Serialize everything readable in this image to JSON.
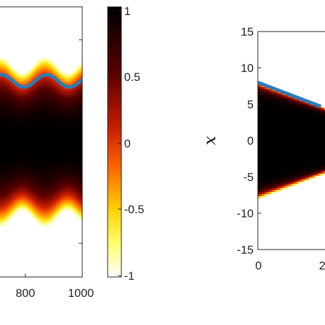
{
  "chart_data": [
    {
      "type": "heatmap",
      "title": "",
      "xlabel": "",
      "ylabel": "",
      "x_ticks": [
        "800",
        "1000"
      ],
      "xlim": [
        660,
        1000
      ],
      "pattern": "oscillating Gaussian band, centre near zero, period ~100",
      "line_series_color": "#2b7bb9",
      "colormap": "hot (reversed): white → yellow → red → black"
    },
    {
      "type": "heatmap",
      "title": "",
      "xlabel": "",
      "ylabel": "x",
      "y_ticks": [
        "15",
        "10",
        "5",
        "0",
        "-5",
        "-10",
        "-15"
      ],
      "ylim": [
        -15,
        15
      ],
      "x_ticks": [
        "0",
        "2"
      ],
      "pattern": "wedge narrowing from half-width ~8 at t=0",
      "line_series": {
        "color": "#2b7bb9",
        "x": [
          0,
          1
        ],
        "y": [
          8,
          4.7
        ]
      }
    }
  ],
  "colorbar": {
    "tick_labels": [
      "1",
      "0.5",
      "0",
      "-0.5",
      "-1"
    ],
    "range": [
      -1,
      1
    ]
  }
}
